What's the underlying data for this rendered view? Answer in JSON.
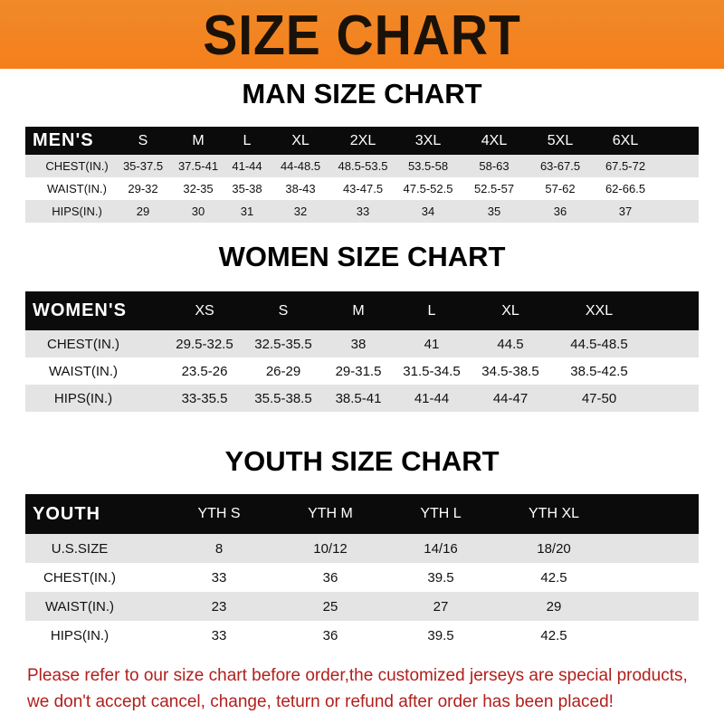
{
  "banner_title": "SIZE CHART",
  "men": {
    "title": "MAN SIZE CHART",
    "header": [
      "MEN'S",
      "S",
      "M",
      "L",
      "XL",
      "2XL",
      "3XL",
      "4XL",
      "5XL",
      "6XL"
    ],
    "rows": [
      [
        "CHEST(IN.)",
        "35-37.5",
        "37.5-41",
        "41-44",
        "44-48.5",
        "48.5-53.5",
        "53.5-58",
        "58-63",
        "63-67.5",
        "67.5-72"
      ],
      [
        "WAIST(IN.)",
        "29-32",
        "32-35",
        "35-38",
        "38-43",
        "43-47.5",
        "47.5-52.5",
        "52.5-57",
        "57-62",
        "62-66.5"
      ],
      [
        "HIPS(IN.)",
        "29",
        "30",
        "31",
        "32",
        "33",
        "34",
        "35",
        "36",
        "37"
      ]
    ]
  },
  "women": {
    "title": "WOMEN SIZE CHART",
    "header": [
      "WOMEN'S",
      "XS",
      "S",
      "M",
      "L",
      "XL",
      "XXL"
    ],
    "rows": [
      [
        "CHEST(IN.)",
        "29.5-32.5",
        "32.5-35.5",
        "38",
        "41",
        "44.5",
        "44.5-48.5"
      ],
      [
        "WAIST(IN.)",
        "23.5-26",
        "26-29",
        "29-31.5",
        "31.5-34.5",
        "34.5-38.5",
        "38.5-42.5"
      ],
      [
        "HIPS(IN.)",
        "33-35.5",
        "35.5-38.5",
        "38.5-41",
        "41-44",
        "44-47",
        "47-50"
      ]
    ]
  },
  "youth": {
    "title": "YOUTH SIZE CHART",
    "header": [
      "YOUTH",
      "YTH S",
      "YTH M",
      "YTH L",
      "YTH XL"
    ],
    "rows": [
      [
        "U.S.SIZE",
        "8",
        "10/12",
        "14/16",
        "18/20"
      ],
      [
        "CHEST(IN.)",
        "33",
        "36",
        "39.5",
        "42.5"
      ],
      [
        "WAIST(IN.)",
        "23",
        "25",
        "27",
        "29"
      ],
      [
        "HIPS(IN.)",
        "33",
        "36",
        "39.5",
        "42.5"
      ]
    ]
  },
  "notice": {
    "line1": "Please refer to our size chart before order,the customized jerseys are special products,",
    "line2": "we don't accept cancel, change, teturn or refund after order has been placed!"
  },
  "colors": {
    "banner": "#f47f1a",
    "header_row": "#0b0b0b",
    "stripe": "#e4e4e4",
    "notice": "#b11f1c"
  }
}
